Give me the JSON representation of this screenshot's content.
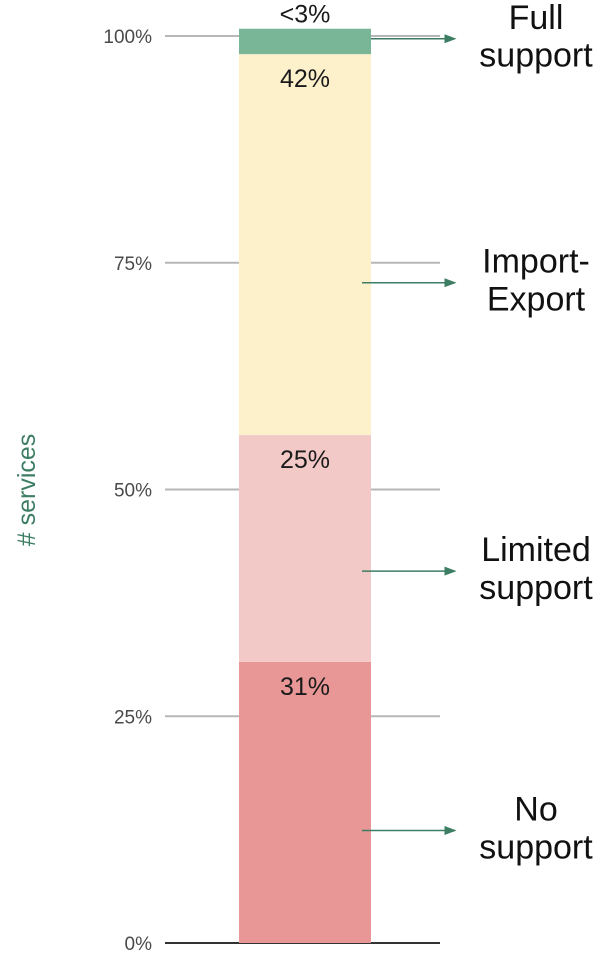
{
  "chart_data": {
    "type": "bar",
    "stacked": true,
    "ylabel": "# services",
    "ylim": [
      0,
      100
    ],
    "yticks": [
      {
        "value": 0,
        "label": "0%"
      },
      {
        "value": 25,
        "label": "25%"
      },
      {
        "value": 50,
        "label": "50%"
      },
      {
        "value": 75,
        "label": "75%"
      },
      {
        "value": 100,
        "label": "100%"
      }
    ],
    "grid": false,
    "legend_position": "right",
    "series": [
      {
        "name": "No support",
        "lines": [
          "No",
          "support"
        ],
        "value": 31,
        "label": "31%",
        "color": "#e89796"
      },
      {
        "name": "Limited support",
        "lines": [
          "Limited",
          "support"
        ],
        "value": 25,
        "label": "25%",
        "color": "#f3c9c8"
      },
      {
        "name": "Import-Export",
        "lines": [
          "Import-",
          "Export"
        ],
        "value": 42,
        "label": "42%",
        "color": "#fdf1cc"
      },
      {
        "name": "Full support",
        "lines": [
          "Full",
          "support"
        ],
        "value": 2.8,
        "label": "<3%",
        "color": "#79b597"
      }
    ],
    "arrow_color": "#3d7d63",
    "tick_line_color": "#b7b7b7",
    "baseline_color": "#333333"
  }
}
